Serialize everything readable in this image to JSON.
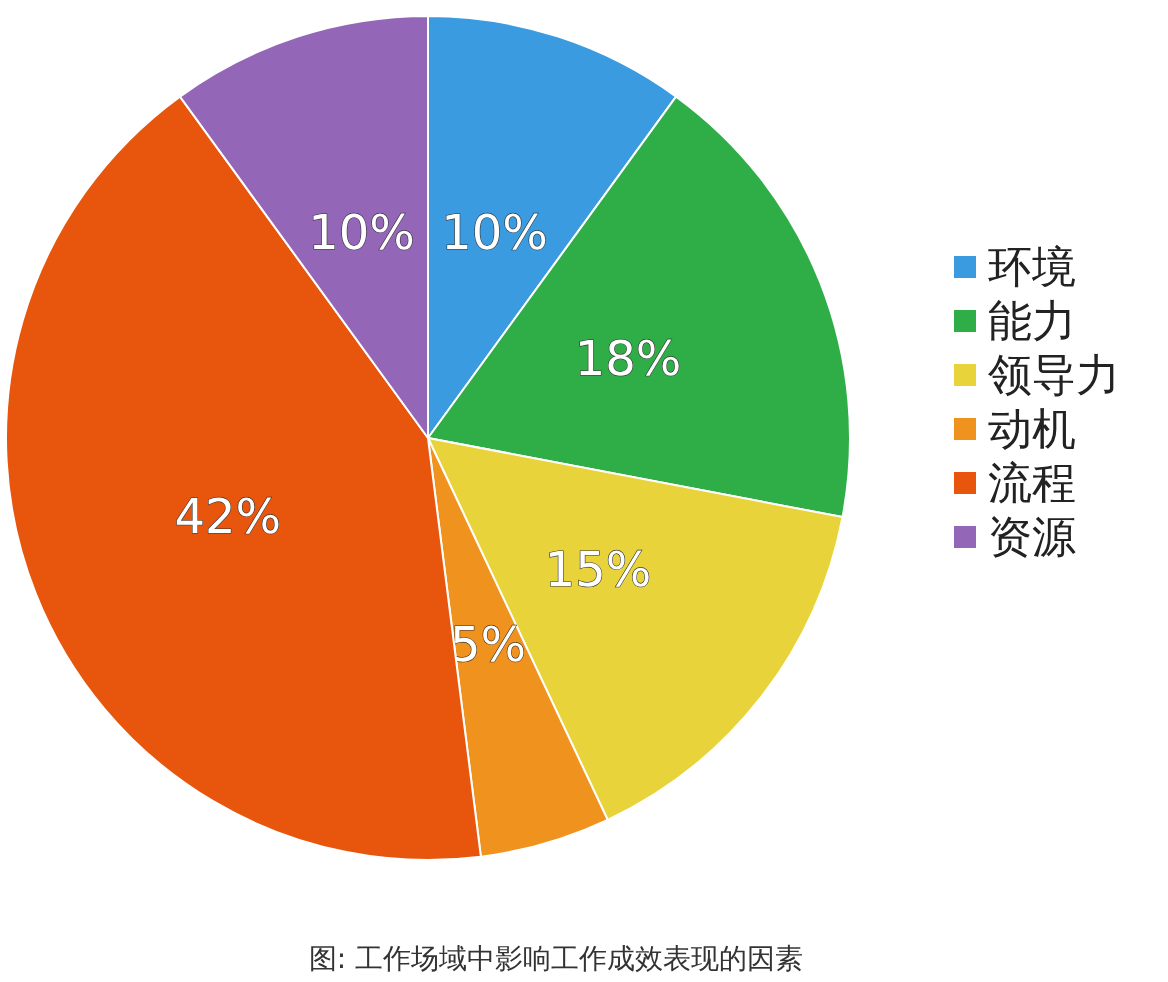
{
  "chart_data": {
    "type": "pie",
    "categories": [
      "环境",
      "能力",
      "领导力",
      "动机",
      "流程",
      "资源"
    ],
    "values": [
      10,
      18,
      15,
      5,
      42,
      10
    ],
    "colors": [
      "#3a9be0",
      "#2fae48",
      "#e8d43a",
      "#f0921e",
      "#e8560e",
      "#9466b8"
    ],
    "value_labels": [
      "10%",
      "18%",
      "15%",
      "5%",
      "42%",
      "10%"
    ],
    "legend": "right",
    "annotations": [
      "图: 工作场域中影响工作成效表现的因素"
    ]
  }
}
